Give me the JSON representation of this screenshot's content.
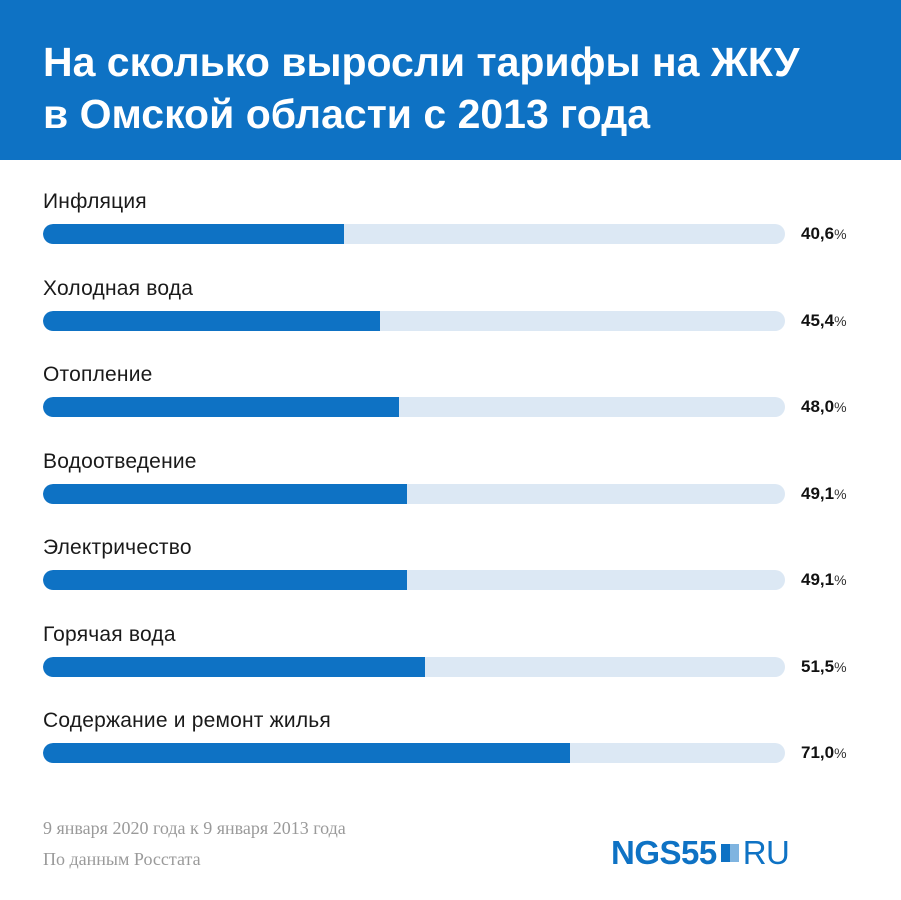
{
  "header": {
    "title_line1": "На сколько выросли тарифы на ЖКУ",
    "title_line2": "в Омской области с 2013 года"
  },
  "chart_data": {
    "type": "bar",
    "orientation": "horizontal",
    "title": "На сколько выросли тарифы на ЖКУ в Омской области с 2013 года",
    "categories": [
      "Инфляция",
      "Холодная вода",
      "Отопление",
      "Водоотведение",
      "Электричество",
      "Горячая вода",
      "Содержание и ремонт жилья"
    ],
    "values": [
      40.6,
      45.4,
      48.0,
      49.1,
      49.1,
      51.5,
      71.0
    ],
    "value_labels": [
      "40,6",
      "45,4",
      "48,0",
      "49,1",
      "49,1",
      "51,5",
      "71,0"
    ],
    "unit": "%",
    "xlim": [
      0,
      100
    ],
    "grid": false
  },
  "footer": {
    "period": "9 января 2020 года к 9 января 2013 года",
    "source": "По данным Росстата",
    "logo_main": "NGS55",
    "logo_suffix": "RU"
  },
  "colors": {
    "accent": "#0e72c4",
    "track": "#dce8f4"
  }
}
